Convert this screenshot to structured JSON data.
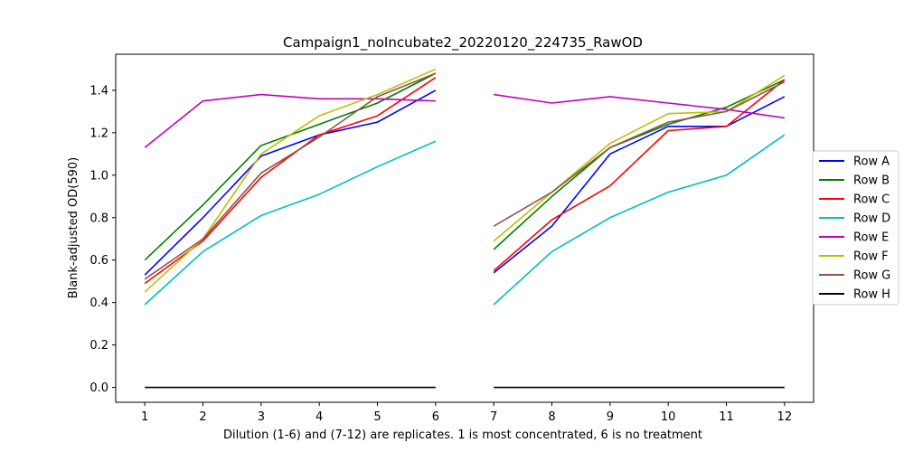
{
  "chart_data": {
    "type": "line",
    "title": "Campaign1_noIncubate2_20220120_224735_RawOD",
    "xlabel": "Dilution (1-6) and (7-12) are replicates. 1 is most concentrated, 6 is no treatment",
    "ylabel": "Blank-adjusted OD(590)",
    "xlim": [
      0.5,
      12.5
    ],
    "ylim": [
      -0.07,
      1.57
    ],
    "xticks": [
      1,
      2,
      3,
      4,
      5,
      6,
      7,
      8,
      9,
      10,
      11,
      12
    ],
    "yticks": [
      0.0,
      0.2,
      0.4,
      0.6,
      0.8,
      1.0,
      1.2,
      1.4
    ],
    "ytick_labels": [
      "0.0",
      "0.2",
      "0.4",
      "0.6",
      "0.8",
      "1.0",
      "1.2",
      "1.4"
    ],
    "grid": false,
    "legend_position": "right",
    "x": [
      1,
      2,
      3,
      4,
      5,
      6,
      7,
      8,
      9,
      10,
      11,
      12
    ],
    "segments": [
      [
        0,
        5
      ],
      [
        6,
        11
      ]
    ],
    "series": [
      {
        "name": "Row A",
        "color": "#0000ff",
        "values": [
          0.53,
          0.8,
          1.09,
          1.19,
          1.25,
          1.4,
          0.54,
          0.76,
          1.1,
          1.23,
          1.23,
          1.37
        ]
      },
      {
        "name": "Row B",
        "color": "#008000",
        "values": [
          0.6,
          0.86,
          1.14,
          1.24,
          1.34,
          1.48,
          0.65,
          0.9,
          1.13,
          1.24,
          1.32,
          1.45
        ]
      },
      {
        "name": "Row C",
        "color": "#ff0000",
        "values": [
          0.49,
          0.69,
          0.99,
          1.19,
          1.28,
          1.46,
          0.55,
          0.79,
          0.95,
          1.21,
          1.23,
          1.45
        ]
      },
      {
        "name": "Row D",
        "color": "#00bfbf",
        "values": [
          0.39,
          0.64,
          0.81,
          0.91,
          1.04,
          1.16,
          0.39,
          0.64,
          0.8,
          0.92,
          1.0,
          1.19
        ]
      },
      {
        "name": "Row E",
        "color": "#bf00bf",
        "values": [
          1.13,
          1.35,
          1.38,
          1.36,
          1.36,
          1.35,
          1.38,
          1.34,
          1.37,
          1.34,
          1.31,
          1.27
        ]
      },
      {
        "name": "Row F",
        "color": "#bfbf00",
        "values": [
          0.45,
          0.7,
          1.1,
          1.28,
          1.38,
          1.5,
          0.69,
          0.92,
          1.15,
          1.29,
          1.3,
          1.47
        ]
      },
      {
        "name": "Row G",
        "color": "#8c564b",
        "values": [
          0.51,
          0.7,
          1.01,
          1.18,
          1.37,
          1.48,
          0.76,
          0.92,
          1.13,
          1.25,
          1.3,
          1.44
        ]
      },
      {
        "name": "Row H",
        "color": "#000000",
        "values": [
          0.0,
          0.0,
          0.0,
          0.0,
          0.0,
          0.0,
          0.0,
          0.0,
          0.0,
          0.0,
          0.0,
          0.0
        ]
      }
    ]
  }
}
